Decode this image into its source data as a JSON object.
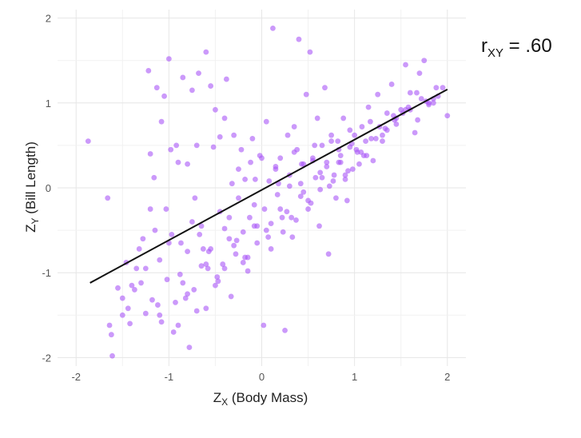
{
  "chart_data": {
    "type": "scatter",
    "title": "",
    "xlabel": {
      "main": "Z",
      "sub": "X",
      "rest": " (Body Mass)"
    },
    "ylabel": {
      "main": "Z",
      "sub": "Y",
      "rest": " (Bill Length)"
    },
    "xlim": [
      -2.2,
      2.2
    ],
    "ylim": [
      -2.1,
      2.1
    ],
    "x_ticks": [
      -2,
      -1,
      0,
      1,
      2
    ],
    "y_ticks": [
      -2,
      -1,
      0,
      1,
      2
    ],
    "grid": true,
    "point_color": "#a855f7",
    "line_color": "#111111",
    "fit_line": {
      "x": [
        -1.85,
        2.0
      ],
      "y": [
        -1.12,
        1.16
      ]
    },
    "annotation": {
      "main": "r",
      "sub": "XY",
      "rest": " = .60"
    },
    "points": {
      "x": [
        -1.87,
        -1.66,
        -1.64,
        -1.62,
        -1.61,
        -1.55,
        -1.5,
        -1.46,
        -1.44,
        -1.42,
        -1.37,
        -1.35,
        -1.3,
        -1.28,
        -1.22,
        -1.2,
        -1.18,
        -1.16,
        -1.13,
        -1.1,
        -1.08,
        -1.05,
        -1.03,
        -1.0,
        -0.98,
        -0.95,
        -0.92,
        -0.9,
        -0.87,
        -0.85,
        -0.82,
        -0.8,
        -0.78,
        -0.75,
        -0.72,
        -0.7,
        -0.68,
        -0.65,
        -0.63,
        -0.6,
        -0.58,
        -0.55,
        -0.52,
        -0.5,
        -0.48,
        -0.45,
        -0.42,
        -0.4,
        -0.38,
        -0.35,
        -0.32,
        -0.3,
        -0.28,
        -0.25,
        -0.22,
        -0.2,
        -0.18,
        -0.15,
        -0.12,
        -0.1,
        -0.08,
        -0.05,
        -0.02,
        0.0,
        0.02,
        0.05,
        0.08,
        0.1,
        0.12,
        0.15,
        0.18,
        0.2,
        0.22,
        0.25,
        0.28,
        0.3,
        0.33,
        0.35,
        0.38,
        0.4,
        0.42,
        0.45,
        0.48,
        0.5,
        0.52,
        0.55,
        0.58,
        0.6,
        0.62,
        0.65,
        0.68,
        0.7,
        0.72,
        0.75,
        0.78,
        0.8,
        0.82,
        0.85,
        0.88,
        0.9,
        0.92,
        0.95,
        0.98,
        1.0,
        1.05,
        1.08,
        1.12,
        1.15,
        1.2,
        1.25,
        1.3,
        1.35,
        1.4,
        1.45,
        1.5,
        1.55,
        1.6,
        1.65,
        1.7,
        1.75,
        1.8,
        1.85,
        1.9,
        1.95,
        2.0,
        -1.5,
        -1.4,
        -1.32,
        -1.25,
        -1.15,
        -1.08,
        -1.0,
        -0.93,
        -0.88,
        -0.8,
        -0.73,
        -0.67,
        -0.6,
        -0.55,
        -0.47,
        -0.4,
        -0.33,
        -0.27,
        -0.2,
        -0.13,
        -0.05,
        0.03,
        0.1,
        0.17,
        0.23,
        0.3,
        0.37,
        0.43,
        0.5,
        0.57,
        0.63,
        0.7,
        0.77,
        0.83,
        0.9,
        0.97,
        1.03,
        1.1,
        1.18,
        1.27,
        1.35,
        1.43,
        1.52,
        1.6,
        1.68,
        1.77,
        1.85,
        -1.2,
        -1.1,
        -0.97,
        -0.85,
        -0.75,
        -0.65,
        -0.57,
        -0.45,
        -0.35,
        -0.25,
        -0.15,
        -0.07,
        0.05,
        0.15,
        0.27,
        0.35,
        0.45,
        0.55,
        0.65,
        0.75,
        0.85,
        0.95,
        1.07,
        1.17,
        1.3,
        1.42,
        1.55,
        1.67,
        1.8,
        -1.25,
        -1.12,
        -1.02,
        -0.9,
        -0.8,
        -0.7,
        -0.6,
        -0.5,
        -0.4,
        -0.3,
        -0.18,
        -0.08,
        0.07,
        0.2,
        0.32,
        0.42,
        0.53,
        0.63,
        0.73,
        0.83,
        0.93,
        1.02,
        1.13,
        1.23,
        1.33,
        1.45,
        1.58,
        1.72,
        1.88
      ],
      "y": [
        0.55,
        -0.12,
        -1.62,
        -1.73,
        -1.98,
        -1.18,
        -1.5,
        -0.88,
        -1.42,
        -1.6,
        -1.2,
        -0.95,
        -1.12,
        -0.6,
        1.38,
        0.4,
        -1.32,
        0.12,
        1.18,
        -1.5,
        0.78,
        1.08,
        -0.25,
        1.52,
        0.45,
        -1.7,
        0.5,
        0.3,
        -0.65,
        1.3,
        -1.3,
        0.28,
        -1.88,
        1.15,
        -0.12,
        0.5,
        1.35,
        -0.45,
        -0.72,
        1.6,
        -0.95,
        1.2,
        0.48,
        0.92,
        -1.05,
        0.6,
        -0.9,
        0.82,
        1.28,
        -0.35,
        0.05,
        0.62,
        -0.78,
        0.22,
        0.45,
        -0.52,
        0.1,
        -0.98,
        0.3,
        0.58,
        -0.2,
        -0.65,
        0.38,
        0.35,
        -1.62,
        0.78,
        0.08,
        -0.42,
        1.88,
        0.25,
        0.05,
        0.35,
        -0.35,
        -1.68,
        0.62,
        0.15,
        -0.58,
        0.72,
        0.45,
        1.75,
        -0.1,
        0.28,
        1.1,
        -0.25,
        1.6,
        0.35,
        0.12,
        0.82,
        -0.45,
        0.5,
        1.18,
        0.25,
        -0.78,
        0.62,
        0.15,
        -0.12,
        0.55,
        0.38,
        0.82,
        0.1,
        -0.15,
        0.48,
        0.22,
        0.62,
        0.28,
        0.72,
        0.55,
        0.95,
        0.32,
        1.1,
        0.62,
        0.88,
        1.22,
        0.75,
        0.92,
        1.45,
        1.12,
        0.65,
        1.35,
        1.5,
        0.98,
        1.0,
        1.08,
        1.18,
        0.85,
        -1.3,
        -1.15,
        -0.72,
        -1.48,
        -0.5,
        -1.58,
        -0.65,
        -1.35,
        -1.02,
        -0.75,
        -1.2,
        -0.55,
        -1.42,
        -0.72,
        -1.1,
        -0.48,
        -1.28,
        -0.62,
        -0.88,
        -0.35,
        -0.45,
        -0.25,
        -0.72,
        -0.08,
        -0.52,
        0.02,
        -0.38,
        0.28,
        -0.15,
        0.5,
        -0.02,
        0.3,
        0.08,
        0.45,
        0.15,
        0.52,
        0.42,
        0.38,
        0.58,
        0.72,
        0.68,
        0.8,
        0.88,
        0.92,
        0.8,
        1.02,
        1.05,
        -0.25,
        -0.85,
        -0.55,
        -1.12,
        -0.4,
        -0.92,
        -0.75,
        -0.28,
        -0.6,
        -0.12,
        -0.82,
        0.1,
        -0.5,
        0.22,
        -0.28,
        0.42,
        -0.05,
        0.32,
        0.12,
        0.55,
        0.3,
        0.68,
        0.42,
        0.78,
        0.55,
        0.85,
        0.92,
        1.12,
        1.0,
        -0.95,
        -1.38,
        -1.08,
        -1.62,
        -1.25,
        -1.45,
        -0.9,
        -1.15,
        -0.95,
        -0.68,
        -0.82,
        -0.45,
        -0.58,
        -0.25,
        -0.35,
        0.05,
        -0.18,
        0.18,
        0.02,
        0.3,
        0.2,
        0.45,
        0.38,
        0.58,
        0.7,
        0.82,
        0.95,
        1.05,
        1.18
      ]
    }
  }
}
